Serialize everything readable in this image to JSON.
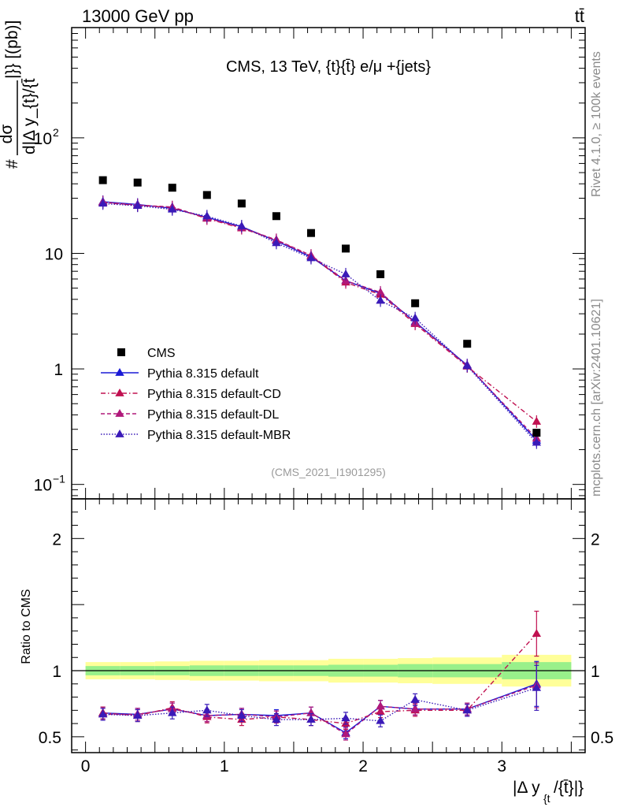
{
  "header": {
    "left": "13000 GeV pp",
    "right": "tt̄"
  },
  "side_labels": {
    "rivet": "Rivet 4.1.0, ≥ 100k events",
    "mcplots": "mcplots.cern.ch [arXiv:2401.10621]"
  },
  "chart_data": [
    {
      "type": "scatter",
      "title": "CMS, 13 TeV, {t}{t̄} e/μ +{jets}",
      "watermark": "(CMS_2021_I1901295)",
      "ylabel": "# dσ/d|Δ y_{t}/{t̄}|} [(pb)]",
      "ylabel_parts": {
        "prefix": "#",
        "numerator": "dσ",
        "denominator": "d|Δ y_{t}/{t̄",
        "suffix": "|}} [(pb)]"
      },
      "yscale": "log",
      "ylim": [
        0.075,
        900
      ],
      "xlim": [
        -0.1,
        3.6
      ],
      "ytick_labels": [
        {
          "value": 0.1,
          "label": "10",
          "exp": "−1"
        },
        {
          "value": 1,
          "label": "1",
          "exp": ""
        },
        {
          "value": 10,
          "label": "10",
          "exp": ""
        },
        {
          "value": 100,
          "label": "10",
          "exp": "2"
        }
      ],
      "x": [
        0.125,
        0.375,
        0.625,
        0.875,
        1.125,
        1.375,
        1.625,
        1.875,
        2.125,
        2.375,
        2.75,
        3.25
      ],
      "series": [
        {
          "name": "CMS",
          "style": "square",
          "color": "#000000",
          "values": [
            43,
            41,
            37,
            32,
            27,
            21,
            15,
            11,
            6.6,
            3.7,
            1.65,
            0.28
          ]
        },
        {
          "name": "Pythia 8.315 default",
          "style": "solid",
          "color": "#1a1ad6",
          "values": [
            28.0,
            26.5,
            24.5,
            20.5,
            17.0,
            12.8,
            9.3,
            5.8,
            4.5,
            2.55,
            1.08,
            0.24
          ]
        },
        {
          "name": "Pythia 8.315 default-CD",
          "style": "dashdot",
          "color": "#c01050",
          "values": [
            27.5,
            26.0,
            25.0,
            20.0,
            16.5,
            13.0,
            9.5,
            5.6,
            4.4,
            2.45,
            1.05,
            0.35
          ]
        },
        {
          "name": "Pythia 8.315 default-DL",
          "style": "dashed",
          "color": "#b0187a",
          "values": [
            27.8,
            26.2,
            25.2,
            20.2,
            16.7,
            13.1,
            9.6,
            5.8,
            4.6,
            2.5,
            1.07,
            0.25
          ]
        },
        {
          "name": "Pythia 8.315 default-MBR",
          "style": "dotted",
          "color": "#3a1ab8",
          "values": [
            27.0,
            25.8,
            24.0,
            21.0,
            17.2,
            12.3,
            9.1,
            6.6,
            3.9,
            2.75,
            1.06,
            0.23
          ]
        }
      ]
    },
    {
      "type": "line",
      "ylabel": "Ratio to CMS",
      "xlabel": "|Δ y_{t}/{t̄}|}",
      "xlabel_parts": {
        "main": "|Δ y",
        "sub": "{t",
        "tail": "/{t̄}|}"
      },
      "ylim": [
        0.38,
        2.3
      ],
      "xlim": [
        -0.1,
        3.6
      ],
      "ytick_labels": [
        {
          "value": 0.5,
          "label": "0.5"
        },
        {
          "value": 1,
          "label": "1"
        },
        {
          "value": 2,
          "label": "2"
        }
      ],
      "xtick_labels": [
        "0",
        "1",
        "2",
        "3"
      ],
      "x": [
        0.125,
        0.375,
        0.625,
        0.875,
        1.125,
        1.375,
        1.625,
        1.875,
        2.125,
        2.375,
        2.75,
        3.25
      ],
      "bins": [
        [
          0,
          0.25
        ],
        [
          0.25,
          0.5
        ],
        [
          0.5,
          0.75
        ],
        [
          0.75,
          1.0
        ],
        [
          1.0,
          1.25
        ],
        [
          1.25,
          1.5
        ],
        [
          1.5,
          1.75
        ],
        [
          1.75,
          2.0
        ],
        [
          2.0,
          2.25
        ],
        [
          2.25,
          2.5
        ],
        [
          2.5,
          3.0
        ],
        [
          3.0,
          3.5
        ]
      ],
      "band_inner": [
        0.035,
        0.035,
        0.035,
        0.04,
        0.04,
        0.04,
        0.04,
        0.045,
        0.045,
        0.05,
        0.05,
        0.065
      ],
      "band_outer": [
        0.065,
        0.065,
        0.07,
        0.075,
        0.075,
        0.08,
        0.08,
        0.09,
        0.09,
        0.095,
        0.1,
        0.12
      ],
      "series": [
        {
          "name": "Pythia 8.315 default",
          "values": [
            0.68,
            0.67,
            0.71,
            0.66,
            0.67,
            0.66,
            0.68,
            0.53,
            0.73,
            0.71,
            0.71,
            0.9
          ]
        },
        {
          "name": "Pythia 8.315 default-CD",
          "values": [
            0.68,
            0.66,
            0.72,
            0.65,
            0.63,
            0.65,
            0.63,
            0.6,
            0.69,
            0.7,
            0.7,
            1.28
          ]
        },
        {
          "name": "Pythia 8.315 default-DL",
          "values": [
            0.67,
            0.67,
            0.71,
            0.66,
            0.67,
            0.65,
            0.68,
            0.52,
            0.73,
            0.71,
            0.71,
            0.89
          ]
        },
        {
          "name": "Pythia 8.315 default-MBR",
          "values": [
            0.67,
            0.66,
            0.68,
            0.7,
            0.66,
            0.63,
            0.63,
            0.64,
            0.62,
            0.78,
            0.7,
            0.87
          ]
        }
      ]
    }
  ]
}
